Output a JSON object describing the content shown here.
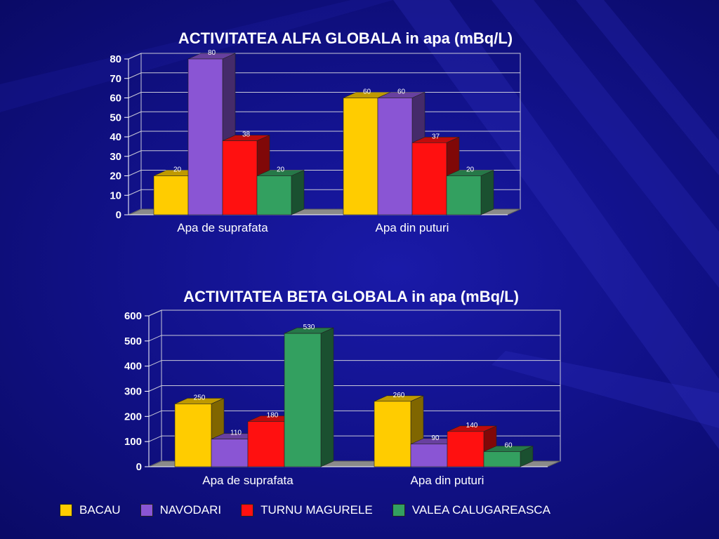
{
  "colors": {
    "BACAU": "#ffcc00",
    "NAVODARI": "#8a55d4",
    "TURNU MAGURELE": "#ff1010",
    "VALEA CALUGAREASCA": "#33a060"
  },
  "legend": [
    "BACAU",
    "NAVODARI",
    "TURNU MAGURELE",
    "VALEA CALUGAREASCA"
  ],
  "chart_data": [
    {
      "type": "bar",
      "title": "ACTIVITATEA ALFA GLOBALA in apa (mBq/L)",
      "categories": [
        "Apa de suprafata",
        "Apa din puturi"
      ],
      "series": [
        {
          "name": "BACAU",
          "values": [
            20,
            60
          ]
        },
        {
          "name": "NAVODARI",
          "values": [
            80,
            60
          ]
        },
        {
          "name": "TURNU MAGURELE",
          "values": [
            38,
            37
          ]
        },
        {
          "name": "VALEA CALUGAREASCA",
          "values": [
            20,
            20
          ]
        }
      ],
      "ylim": [
        0,
        80
      ],
      "yticks": [
        0,
        10,
        20,
        30,
        40,
        50,
        60,
        70,
        80
      ],
      "grid": true
    },
    {
      "type": "bar",
      "title": "ACTIVITATEA BETA GLOBALA in apa (mBq/L)",
      "categories": [
        "Apa de suprafata",
        "Apa din puturi"
      ],
      "series": [
        {
          "name": "BACAU",
          "values": [
            250,
            260
          ]
        },
        {
          "name": "NAVODARI",
          "values": [
            110,
            90
          ]
        },
        {
          "name": "TURNU MAGURELE",
          "values": [
            180,
            140
          ]
        },
        {
          "name": "VALEA CALUGAREASCA",
          "values": [
            530,
            60
          ]
        }
      ],
      "ylim": [
        0,
        600
      ],
      "yticks": [
        0,
        100,
        200,
        300,
        400,
        500,
        600
      ],
      "grid": true
    }
  ]
}
